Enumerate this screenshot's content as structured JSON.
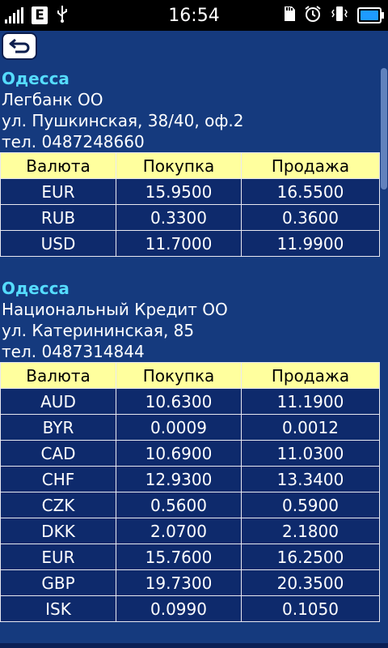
{
  "status_bar": {
    "time": "16:54",
    "network_badge": "E",
    "icons": [
      "signal-icon",
      "usb-icon",
      "sd-card-icon",
      "alarm-icon",
      "vibrate-icon",
      "battery-icon"
    ]
  },
  "back_button": {
    "icon": "back-arrow-icon"
  },
  "columns": [
    "Валюта",
    "Покупка",
    "Продажа"
  ],
  "branches": [
    {
      "city": "Одесса",
      "name": "Легбанк ОО",
      "address": "ул. Пушкинская, 38/40, оф.2",
      "phone": "тел. 0487248660",
      "rates": [
        [
          "EUR",
          "15.9500",
          "16.5500"
        ],
        [
          "RUB",
          "0.3300",
          "0.3600"
        ],
        [
          "USD",
          "11.7000",
          "11.9900"
        ]
      ]
    },
    {
      "city": "Одесса",
      "name": "Национальный Кредит ОО",
      "address": "ул. Катерининская, 85",
      "phone": "тел. 0487314844",
      "rates": [
        [
          "AUD",
          "10.6300",
          "11.1900"
        ],
        [
          "BYR",
          "0.0009",
          "0.0012"
        ],
        [
          "CAD",
          "10.6900",
          "11.0300"
        ],
        [
          "CHF",
          "12.9300",
          "13.3400"
        ],
        [
          "CZK",
          "0.5600",
          "0.5900"
        ],
        [
          "DKK",
          "2.0700",
          "2.1800"
        ],
        [
          "EUR",
          "15.7600",
          "16.2500"
        ],
        [
          "GBP",
          "19.7300",
          "20.3500"
        ],
        [
          "ISK",
          "0.0990",
          "0.1050"
        ]
      ]
    }
  ],
  "colors": {
    "background": "#153a7e",
    "city": "#55dcff",
    "header_fill": "#ffff9e",
    "cell_fill": "#0e2a6c"
  }
}
